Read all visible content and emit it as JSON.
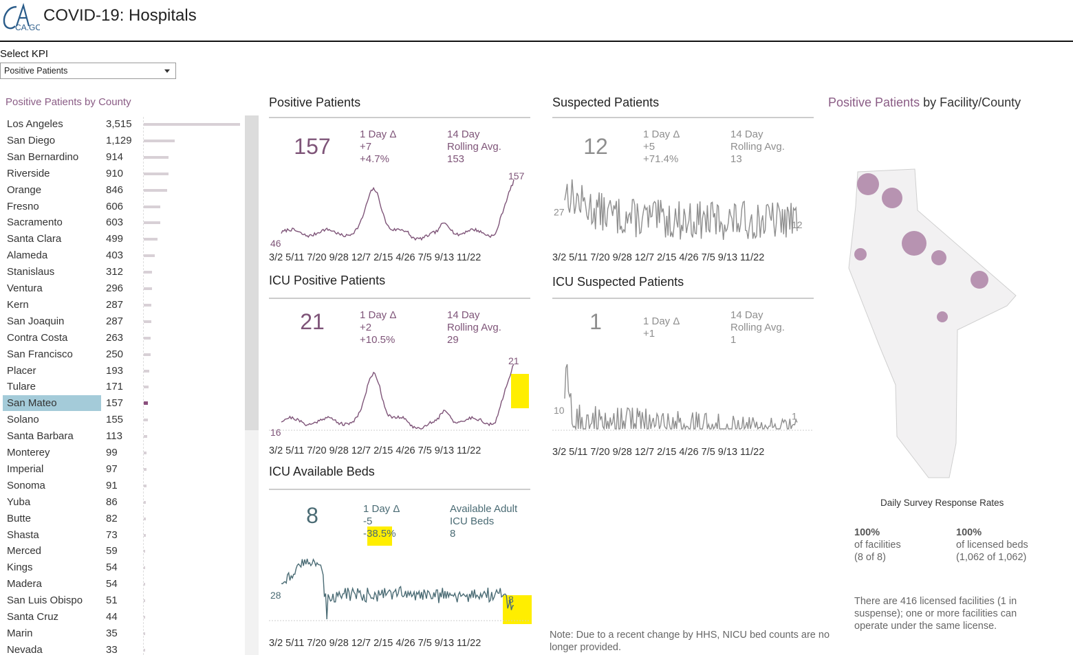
{
  "app": {
    "logo_text": "CA.GOV",
    "title": "COVID-19: Hospitals"
  },
  "kpi_selector": {
    "label": "Select KPI",
    "selected": "Positive Patients"
  },
  "county_panel": {
    "heading": "Positive Patients by County",
    "selected_county": "San Mateo",
    "max_value": 3515,
    "rows": [
      {
        "name": "Los Angeles",
        "value": "3,515",
        "n": 3515
      },
      {
        "name": "San Diego",
        "value": "1,129",
        "n": 1129
      },
      {
        "name": "San Bernardino",
        "value": "914",
        "n": 914
      },
      {
        "name": "Riverside",
        "value": "910",
        "n": 910
      },
      {
        "name": "Orange",
        "value": "846",
        "n": 846
      },
      {
        "name": "Fresno",
        "value": "606",
        "n": 606
      },
      {
        "name": "Sacramento",
        "value": "603",
        "n": 603
      },
      {
        "name": "Santa Clara",
        "value": "499",
        "n": 499
      },
      {
        "name": "Alameda",
        "value": "403",
        "n": 403
      },
      {
        "name": "Stanislaus",
        "value": "312",
        "n": 312
      },
      {
        "name": "Ventura",
        "value": "296",
        "n": 296
      },
      {
        "name": "Kern",
        "value": "287",
        "n": 287
      },
      {
        "name": "San Joaquin",
        "value": "287",
        "n": 287
      },
      {
        "name": "Contra Costa",
        "value": "263",
        "n": 263
      },
      {
        "name": "San Francisco",
        "value": "250",
        "n": 250
      },
      {
        "name": "Placer",
        "value": "193",
        "n": 193
      },
      {
        "name": "Tulare",
        "value": "171",
        "n": 171
      },
      {
        "name": "San Mateo",
        "value": "157",
        "n": 157
      },
      {
        "name": "Solano",
        "value": "155",
        "n": 155
      },
      {
        "name": "Santa Barbara",
        "value": "113",
        "n": 113
      },
      {
        "name": "Monterey",
        "value": "99",
        "n": 99
      },
      {
        "name": "Imperial",
        "value": "97",
        "n": 97
      },
      {
        "name": "Sonoma",
        "value": "91",
        "n": 91
      },
      {
        "name": "Yuba",
        "value": "86",
        "n": 86
      },
      {
        "name": "Butte",
        "value": "82",
        "n": 82
      },
      {
        "name": "Shasta",
        "value": "73",
        "n": 73
      },
      {
        "name": "Merced",
        "value": "59",
        "n": 59
      },
      {
        "name": "Kings",
        "value": "54",
        "n": 54
      },
      {
        "name": "Madera",
        "value": "54",
        "n": 54
      },
      {
        "name": "San Luis Obispo",
        "value": "51",
        "n": 51
      },
      {
        "name": "Santa Cruz",
        "value": "44",
        "n": 44
      },
      {
        "name": "Marin",
        "value": "35",
        "n": 35
      },
      {
        "name": "Nevada",
        "value": "33",
        "n": 33
      }
    ]
  },
  "x_axis_labels": "3/2 5/11 7/20 9/28 12/7 2/15 4/26  7/5  9/13 11/22",
  "panels": {
    "positive": {
      "title": "Positive Patients",
      "value": "157",
      "delta_label": "1 Day Δ",
      "delta_abs": "+7",
      "delta_pct": "+4.7%",
      "avg_label": "14 Day\nRolling Avg.",
      "avg_value": "153",
      "start_label": "46",
      "end_label": "157",
      "color": "#7e5478"
    },
    "suspected": {
      "title": "Suspected Patients",
      "value": "12",
      "delta_label": "1 Day Δ",
      "delta_abs": "+5",
      "delta_pct": "+71.4%",
      "avg_label": "14 Day\nRolling Avg.",
      "avg_value": "13",
      "start_label": "27",
      "end_label": "12",
      "color": "#8e8e8e"
    },
    "icu_positive": {
      "title": "ICU Positive Patients",
      "value": "21",
      "delta_label": "1 Day Δ",
      "delta_abs": "+2",
      "delta_pct": "+10.5%",
      "avg_label": "14 Day\nRolling Avg.",
      "avg_value": "29",
      "start_label": "16",
      "end_label": "21",
      "color": "#7e5478"
    },
    "icu_suspected": {
      "title": "ICU Suspected Patients",
      "value": "1",
      "delta_label": "1 Day Δ",
      "delta_abs": "+1",
      "avg_label": "14 Day\nRolling Avg.",
      "avg_value": "1",
      "start_label": "10",
      "end_label": "1",
      "color": "#8e8e8e"
    },
    "icu_beds": {
      "title": "ICU Available Beds",
      "value": "8",
      "delta_label": "1 Day Δ",
      "delta_abs": "-5",
      "delta_pct": "-38.5%",
      "avg_label": "Available Adult\nICU Beds",
      "avg_value": "8",
      "start_label": "28",
      "end_label": "8",
      "color": "#4a6b74"
    }
  },
  "facility": {
    "heading_kpi": "Positive Patients",
    "heading_rest": " by Facility/County",
    "marker_color": "#b793b1"
  },
  "survey": {
    "title": "Daily Survey Response Rates",
    "facilities_pct": "100%",
    "facilities_label": "of facilities",
    "facilities_count": "(8 of 8)",
    "beds_pct": "100%",
    "beds_label": "of licensed beds",
    "beds_count": "(1,062 of 1,062)",
    "licensed_note": "There are 416 licensed facilities (1 in suspense); one or more facilities can operate under the same license."
  },
  "nicu_note": "Note: Due to a recent change by HHS, NICU bed counts are no longer provided."
}
